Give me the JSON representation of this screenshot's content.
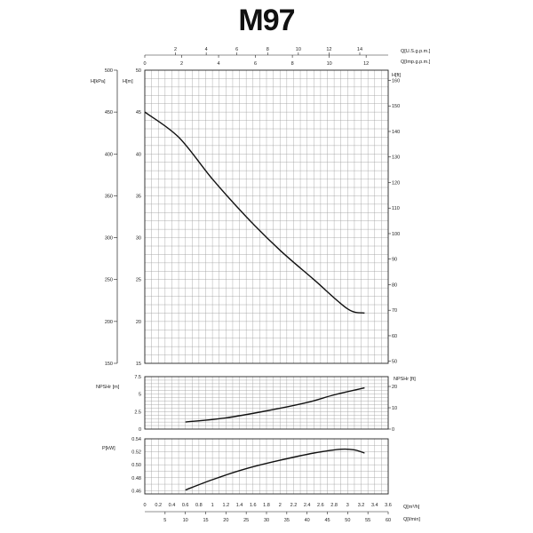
{
  "title": "M97",
  "chart_data": [
    {
      "type": "line",
      "panel": "head",
      "title": "M97",
      "x": [
        0,
        0.5,
        1,
        1.5,
        2,
        2.5,
        3,
        3.25
      ],
      "series": [
        {
          "values": [
            45,
            42,
            37,
            32.5,
            28.5,
            25,
            21.5,
            21
          ]
        }
      ],
      "xlim": [
        0,
        3.6
      ],
      "ylim": [
        15,
        50
      ],
      "left_axes": [
        {
          "label": "H[kPa]",
          "ticks": [
            150,
            200,
            250,
            300,
            350,
            400,
            450,
            500
          ]
        },
        {
          "label": "H[m]",
          "ticks": [
            15,
            20,
            25,
            30,
            35,
            40,
            45,
            50
          ]
        }
      ],
      "right_axis": {
        "label": "H[ft]",
        "ticks": [
          50,
          60,
          70,
          80,
          90,
          100,
          110,
          120,
          130,
          140,
          150,
          160
        ]
      },
      "top_axes": [
        {
          "label": "Q[U.S.g.p.m.]",
          "ticks": [
            2,
            4,
            6,
            8,
            10,
            12,
            14
          ]
        },
        {
          "label": "Q[Imp.g.p.m.]",
          "ticks": [
            0,
            2,
            4,
            6,
            8,
            10,
            12
          ]
        }
      ],
      "grid": true
    },
    {
      "type": "line",
      "panel": "npshr",
      "x": [
        0.6,
        1.2,
        1.8,
        2.4,
        2.8,
        3.25
      ],
      "series": [
        {
          "values": [
            1.0,
            1.6,
            2.6,
            3.8,
            4.9,
            5.9
          ]
        }
      ],
      "xlim": [
        0,
        3.6
      ],
      "ylim": [
        0,
        7.5
      ],
      "left_axis": {
        "label": "NPSHr [m]",
        "ticks": [
          "0",
          "2.5",
          "5",
          "7.5"
        ]
      },
      "right_axis": {
        "label": "NPSHr [ft]",
        "ticks": [
          0,
          10,
          20
        ]
      },
      "grid": true
    },
    {
      "type": "line",
      "panel": "power",
      "x": [
        0.6,
        1.0,
        1.5,
        2.0,
        2.5,
        2.9,
        3.1,
        3.25
      ],
      "series": [
        {
          "values": [
            0.461,
            0.477,
            0.494,
            0.507,
            0.518,
            0.524,
            0.523,
            0.518
          ]
        }
      ],
      "xlim": [
        0,
        3.6
      ],
      "ylim": [
        0.455,
        0.54
      ],
      "left_axis": {
        "label": "P[kW]",
        "ticks": [
          "0.46",
          "0.48",
          "0.50",
          "0.52",
          "0.54"
        ]
      },
      "bottom_axes": [
        {
          "label": "Q[m³/h]",
          "ticks": [
            "0",
            "0.2",
            "0.4",
            "0.6",
            "0.8",
            "1",
            "1.2",
            "1.4",
            "1.6",
            "1.8",
            "2",
            "2.2",
            "2.4",
            "2.6",
            "2.8",
            "3",
            "3.2",
            "3.4",
            "3.6"
          ]
        },
        {
          "label": "Q[l/min]",
          "ticks": [
            5,
            10,
            15,
            20,
            25,
            30,
            35,
            40,
            45,
            50,
            55,
            60
          ]
        }
      ],
      "grid": true
    }
  ]
}
